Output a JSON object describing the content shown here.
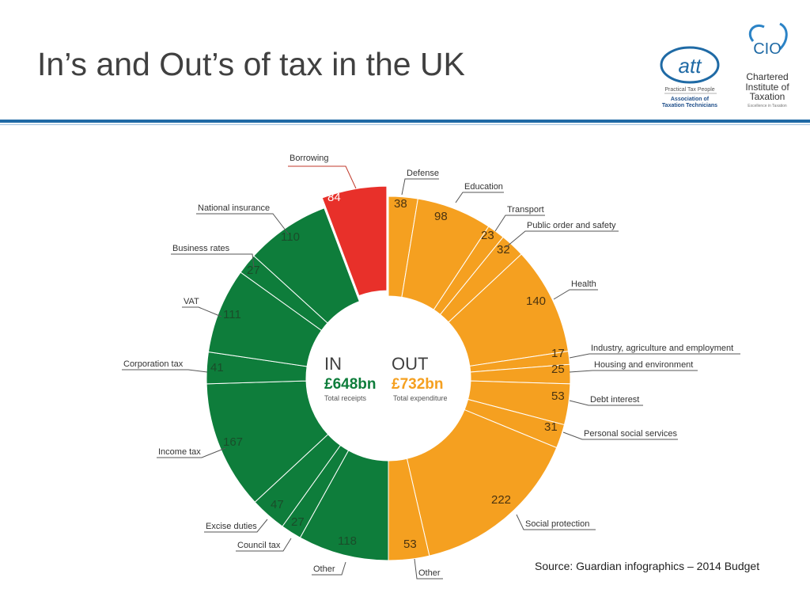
{
  "header": {
    "title": "In’s and Out’s of tax in the UK",
    "logo_att": {
      "mark": "att",
      "tagline": "Practical Tax People",
      "name_line1": "Association of",
      "name_line2": "Taxation Technicians"
    },
    "logo_ciot": {
      "mark": "CIO",
      "name_line1": "Chartered",
      "name_line2": "Institute of",
      "name_line3": "Taxation",
      "tagline": "Excellence in Taxation"
    }
  },
  "footer": {
    "source": "Source: Guardian infographics – 2014 Budget"
  },
  "center": {
    "in_label": "IN",
    "out_label": "OUT",
    "in_total": "£648bn",
    "out_total": "£732bn",
    "in_caption": "Total receipts",
    "out_caption": "Total expenditure"
  },
  "colors": {
    "in": "#0e7d3b",
    "out": "#f5a020",
    "borrowing": "#e8302a",
    "accent_rule": "#1f6aa5"
  },
  "chart_data": {
    "type": "pie",
    "title": "",
    "donut": true,
    "series": [
      {
        "name": "IN",
        "total": "£648bn",
        "categories": [
          "Other",
          "Council tax",
          "Excise duties",
          "Income tax",
          "Corporation tax",
          "VAT",
          "Business rates",
          "National insurance",
          "Borrowing"
        ],
        "values": [
          118,
          27,
          47,
          167,
          41,
          111,
          27,
          110,
          84
        ]
      },
      {
        "name": "OUT",
        "total": "£732bn",
        "categories": [
          "Defense",
          "Education",
          "Transport",
          "Public order and safety",
          "Health",
          "Industry, agriculture and employment",
          "Housing and environment",
          "Debt interest",
          "Personal social services",
          "Social protection",
          "Other"
        ],
        "values": [
          38,
          98,
          23,
          32,
          140,
          17,
          25,
          53,
          31,
          222,
          53
        ]
      }
    ]
  }
}
